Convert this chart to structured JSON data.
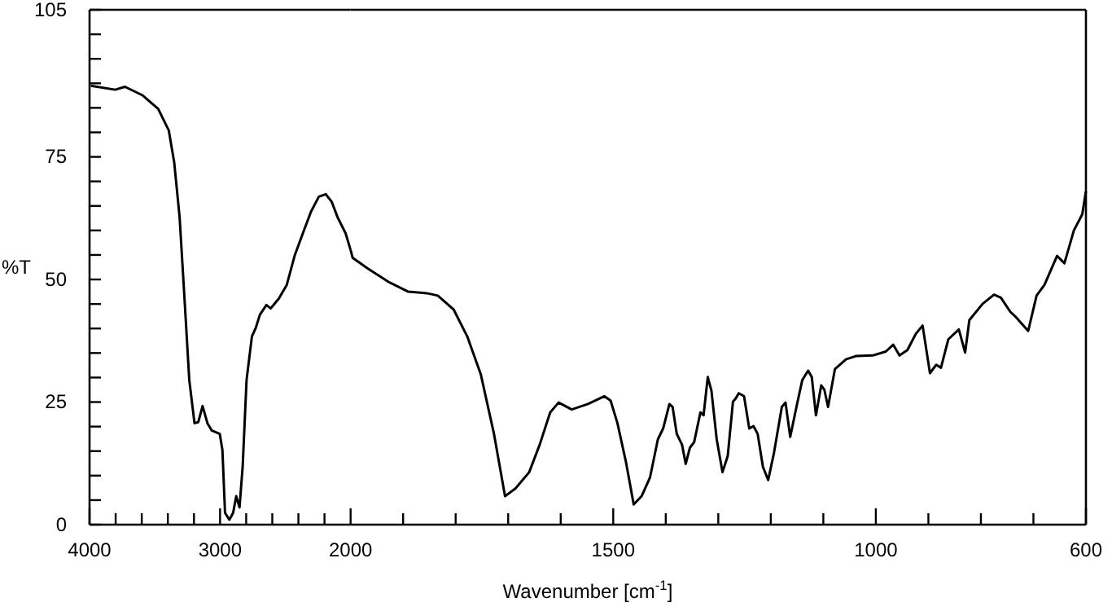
{
  "chart_data": [
    {
      "type": "line",
      "ylabel": "%T",
      "xlim": [
        4000,
        2000
      ],
      "ylim": [
        0,
        105
      ],
      "xticks": [
        4000,
        {
          "value": 3800,
          "label": null
        },
        {
          "value": 3600,
          "label": null
        },
        {
          "value": 3400,
          "label": null
        },
        {
          "value": 3200,
          "label": null
        },
        3000,
        {
          "value": 2800,
          "label": null
        },
        {
          "value": 2600,
          "label": null
        },
        {
          "value": 2400,
          "label": null
        },
        {
          "value": 2200,
          "label": null
        }
      ],
      "yticks": [
        0,
        {
          "value": 5,
          "label": null
        },
        {
          "value": 10,
          "label": null
        },
        {
          "value": 15,
          "label": null
        },
        {
          "value": 20,
          "label": null
        },
        25,
        {
          "value": 30,
          "label": null
        },
        {
          "value": 35,
          "label": null
        },
        {
          "value": 40,
          "label": null
        },
        {
          "value": 45,
          "label": null
        },
        50,
        {
          "value": 55,
          "label": null
        },
        {
          "value": 60,
          "label": null
        },
        {
          "value": 65,
          "label": null
        },
        {
          "value": 70,
          "label": null
        },
        75,
        {
          "value": 80,
          "label": null
        },
        {
          "value": 85,
          "label": null
        },
        {
          "value": 90,
          "label": null
        },
        {
          "value": 95,
          "label": null
        },
        {
          "value": 100,
          "label": null
        },
        105
      ],
      "series": [
        {
          "color": "#000000",
          "x": [
            3990,
            3803,
            3729,
            3597,
            3474,
            3393,
            3351,
            3310,
            3270,
            3236,
            3196,
            3167,
            3134,
            3097,
            3064,
            3002,
            2982,
            2962,
            2929,
            2900,
            2876,
            2851,
            2827,
            2797,
            2756,
            2728,
            2695,
            2645,
            2612,
            2550,
            2489,
            2427,
            2366,
            2304,
            2243,
            2190,
            2144,
            2100,
            2038,
            2000
          ],
          "values": [
            89.5,
            88.7,
            89.3,
            87.6,
            84.8,
            80.4,
            73.8,
            62.7,
            45,
            29.5,
            20.7,
            20.9,
            24.2,
            20.7,
            19.2,
            18.5,
            15.2,
            2.4,
            1,
            2.4,
            5.8,
            3.5,
            11.8,
            29.5,
            38.4,
            40,
            42.8,
            44.8,
            44.1,
            46.1,
            48.9,
            55,
            59.4,
            63.8,
            66.9,
            67.4,
            65.8,
            62.7,
            59.4,
            56
          ]
        }
      ]
    },
    {
      "type": "line",
      "xlabel": "Wavenumber [cm$^{-1}$]",
      "xlim": [
        2000,
        600
      ],
      "ylim": [
        0,
        105
      ],
      "tick_labels": "x",
      "xticks": [
        2000,
        {
          "value": 1900,
          "label": null
        },
        {
          "value": 1800,
          "label": null
        },
        {
          "value": 1700,
          "label": null
        },
        {
          "value": 1600,
          "label": null
        },
        1500,
        {
          "value": 1400,
          "label": null
        },
        {
          "value": 1300,
          "label": null
        },
        {
          "value": 1200,
          "label": null
        },
        {
          "value": 1100,
          "label": null
        },
        1000,
        {
          "value": 900,
          "label": null
        },
        {
          "value": 800,
          "label": null
        },
        {
          "value": 700,
          "label": null
        },
        600
      ],
      "series": [
        {
          "color": "#000000",
          "x": [
            2000,
            1996,
            1967,
            1926,
            1890,
            1855,
            1834,
            1804,
            1778,
            1752,
            1727,
            1706,
            1686,
            1660,
            1640,
            1620,
            1604,
            1579,
            1548,
            1517,
            1505,
            1492,
            1476,
            1461,
            1446,
            1430,
            1415,
            1405,
            1393,
            1387,
            1379,
            1369,
            1362,
            1354,
            1346,
            1334,
            1328,
            1320,
            1313,
            1303,
            1292,
            1282,
            1272,
            1267,
            1261,
            1251,
            1241,
            1233,
            1225,
            1215,
            1205,
            1194,
            1179,
            1172,
            1163,
            1150,
            1140,
            1129,
            1122,
            1114,
            1104,
            1098,
            1091,
            1078,
            1057,
            1037,
            1006,
            981,
            967,
            955,
            940,
            924,
            911,
            897,
            885,
            876,
            862,
            842,
            830,
            822,
            797,
            775,
            762,
            744,
            733,
            710,
            694,
            679,
            655,
            641,
            623,
            607,
            600
          ],
          "values": [
            56,
            54.4,
            52.2,
            49.4,
            47.5,
            47.2,
            46.7,
            43.9,
            38.4,
            30.6,
            18.5,
            5.8,
            7.4,
            10.7,
            16.3,
            22.9,
            24.9,
            23.5,
            24.6,
            26.2,
            25.3,
            20.7,
            12.9,
            4.1,
            5.8,
            9.6,
            17.4,
            19.6,
            24.6,
            24,
            18.5,
            16.3,
            12.4,
            15.7,
            16.8,
            22.9,
            22.3,
            30.1,
            27.3,
            17.4,
            10.7,
            14,
            25.1,
            25.7,
            26.8,
            26.2,
            19.6,
            20.1,
            18.5,
            11.8,
            9.1,
            14.6,
            24,
            24.9,
            17.9,
            24.6,
            29.5,
            31.4,
            30.1,
            22.3,
            28.4,
            27.5,
            24,
            31.7,
            33.7,
            34.4,
            34.5,
            35.3,
            36.7,
            34.5,
            35.6,
            38.9,
            40.6,
            30.9,
            32.6,
            32,
            37.8,
            39.8,
            35.1,
            41.7,
            45,
            46.9,
            46.3,
            43.4,
            42.3,
            39.5,
            46.7,
            48.9,
            54.8,
            53.3,
            60,
            63.3,
            68
          ]
        }
      ]
    }
  ]
}
